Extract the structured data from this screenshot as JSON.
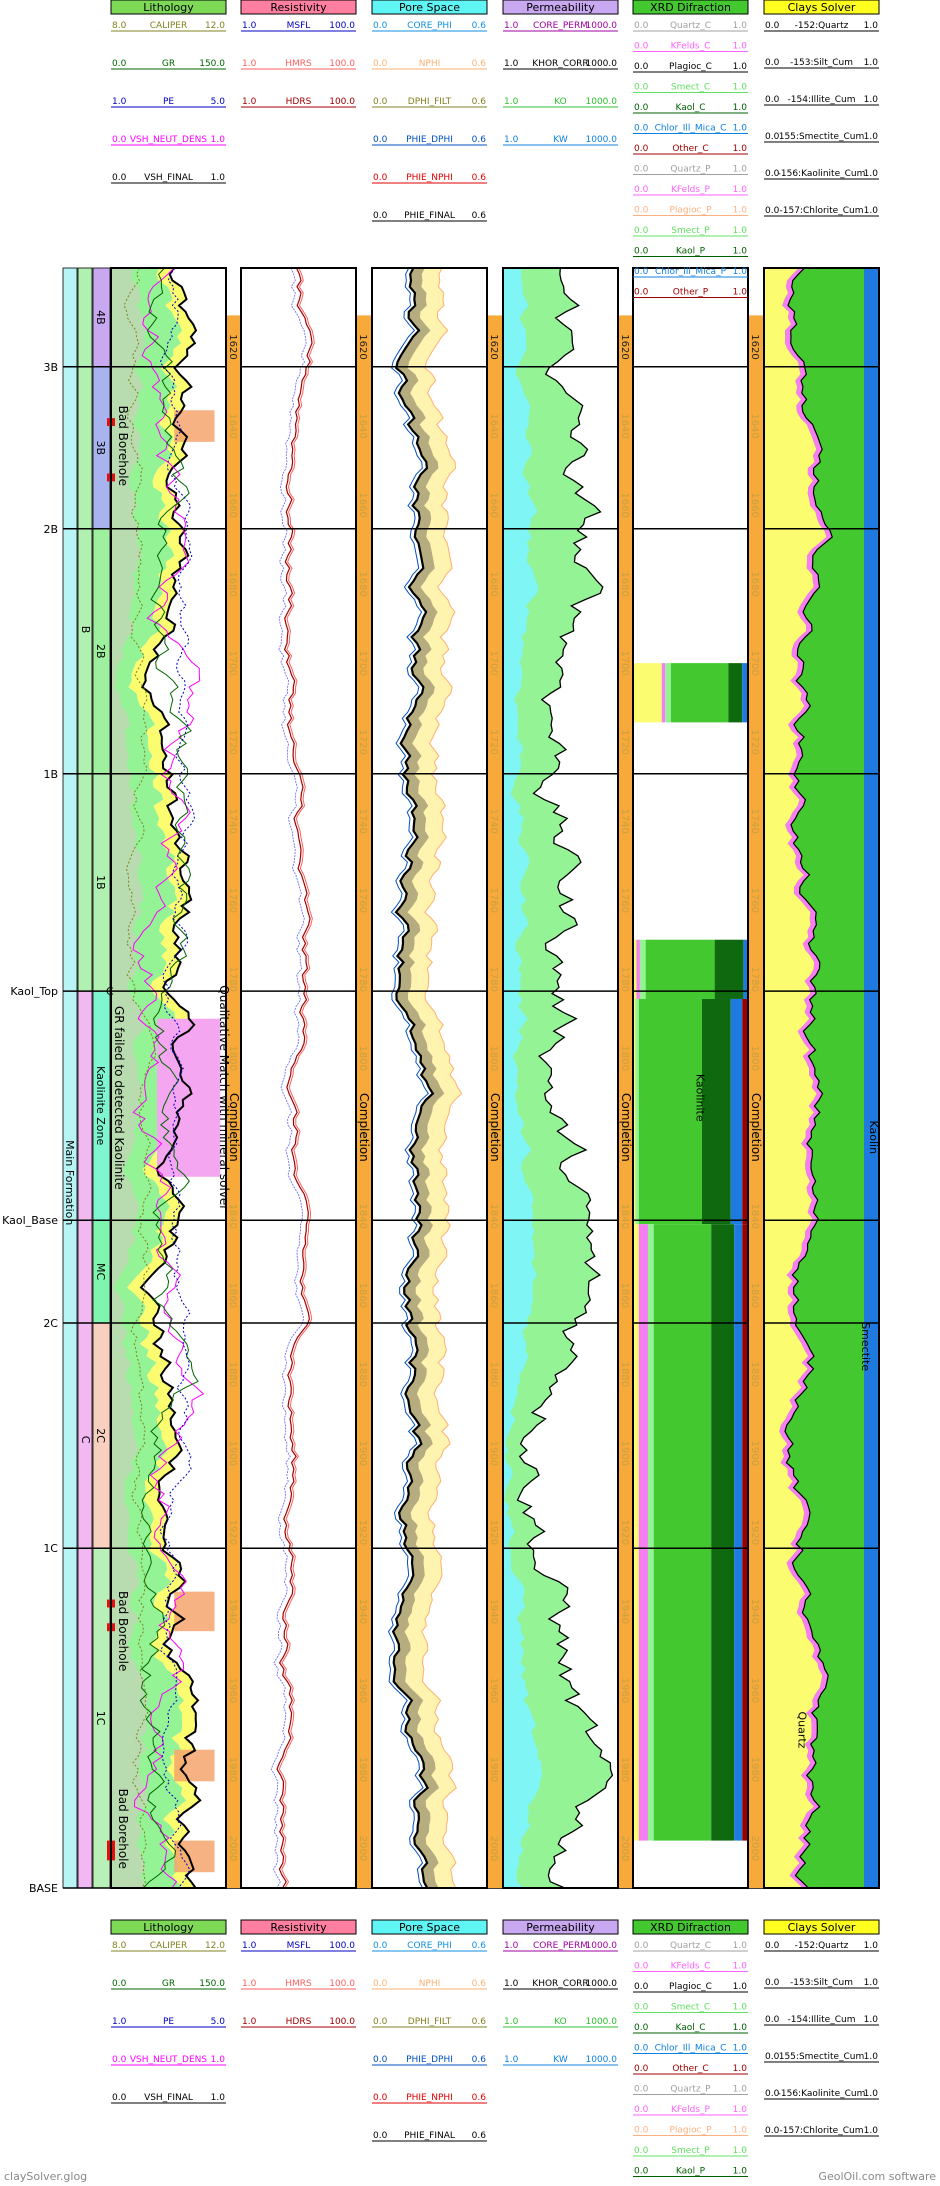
{
  "footer": {
    "left": "claySolver.glog",
    "right": "GeolOil.com software"
  },
  "colors": {
    "lithology": "#7ed957",
    "resistivity": "#ff7fa0",
    "pore_space": "#5ff5f5",
    "permeability": "#c8a8f0",
    "xrd": "#44c830",
    "clays": "#ffff20",
    "completion": "#f7a93a",
    "quartz": "#fcfc70",
    "green": "#44c830",
    "dark_green": "#0f6a0f",
    "pink": "#f77df2",
    "blue": "#1f7ae0",
    "cyan": "#7ff5f5",
    "light_green": "#94f394",
    "maroon": "#9b0000",
    "purple": "#8b0a8b",
    "red": "#e00000",
    "orange": "#f4a46c",
    "tan": "#b5ad80",
    "pale": "#fff3b0"
  },
  "chart_data": {
    "type": "well_log",
    "tracks": [
      {
        "name": "Lithology",
        "curves": [
          {
            "min": "8.0",
            "name": "CALIPER",
            "max": "12.0",
            "color": "#808020"
          },
          {
            "min": "0.0",
            "name": "GR",
            "max": "150.0",
            "color": "#006400"
          },
          {
            "min": "1.0",
            "name": "PE",
            "max": "5.0",
            "color": "#0000c0"
          },
          {
            "min": "0.0",
            "name": "VSH_NEUT_DENS",
            "max": "1.0",
            "color": "#ff00ff"
          },
          {
            "min": "0.0",
            "name": "VSH_FINAL",
            "max": "1.0",
            "color": "#000000"
          }
        ]
      },
      {
        "name": "Resistivity",
        "curves": [
          {
            "min": "1.0",
            "name": "MSFL",
            "max": "100.0",
            "color": "#0000c0"
          },
          {
            "min": "1.0",
            "name": "HMRS",
            "max": "100.0",
            "color": "#ff6060"
          },
          {
            "min": "1.0",
            "name": "HDRS",
            "max": "100.0",
            "color": "#a00000"
          }
        ]
      },
      {
        "name": "Pore Space",
        "curves": [
          {
            "min": "0.0",
            "name": "CORE_PHI",
            "max": "0.6",
            "color": "#1090e0"
          },
          {
            "min": "0.0",
            "name": "NPHI",
            "max": "0.6",
            "color": "#ffb070"
          },
          {
            "min": "0.0",
            "name": "DPHI_FILT",
            "max": "0.6",
            "color": "#808020"
          },
          {
            "min": "0.0",
            "name": "PHIE_DPHI",
            "max": "0.6",
            "color": "#0050c0"
          },
          {
            "min": "0.0",
            "name": "PHIE_NPHI",
            "max": "0.6",
            "color": "#e00000"
          },
          {
            "min": "0.0",
            "name": "PHIE_FINAL",
            "max": "0.6",
            "color": "#000000"
          }
        ]
      },
      {
        "name": "Permeability",
        "curves": [
          {
            "min": "1.0",
            "name": "CORE_PERM",
            "max": "1000.0",
            "color": "#a000a0"
          },
          {
            "min": "1.0",
            "name": "KHOR_CORR",
            "max": "1000.0",
            "color": "#000000"
          },
          {
            "min": "1.0",
            "name": "KO",
            "max": "1000.0",
            "color": "#30c030"
          },
          {
            "min": "1.0",
            "name": "KW",
            "max": "1000.0",
            "color": "#1080e0"
          }
        ]
      },
      {
        "name": "XRD Difraction",
        "curves": [
          {
            "min": "0.0",
            "name": "Quartz_C",
            "max": "1.0",
            "color": "#a0a0a0"
          },
          {
            "min": "0.0",
            "name": "KFelds_C",
            "max": "1.0",
            "color": "#ff60ff"
          },
          {
            "min": "0.0",
            "name": "Plagioc_C",
            "max": "1.0",
            "color": "#000000"
          },
          {
            "min": "0.0",
            "name": "Smect_C",
            "max": "1.0",
            "color": "#60e060"
          },
          {
            "min": "0.0",
            "name": "Kaol_C",
            "max": "1.0",
            "color": "#006000"
          },
          {
            "min": "0.0",
            "name": "Chlor_Ill_Mica_C",
            "max": "1.0",
            "color": "#1080e0"
          },
          {
            "min": "0.0",
            "name": "Other_C",
            "max": "1.0",
            "color": "#a00000"
          },
          {
            "min": "0.0",
            "name": "Quartz_P",
            "max": "1.0",
            "color": "#a0a0a0"
          },
          {
            "min": "0.0",
            "name": "KFelds_P",
            "max": "1.0",
            "color": "#ff60ff"
          },
          {
            "min": "0.0",
            "name": "Plagioc_P",
            "max": "1.0",
            "color": "#ffb080"
          },
          {
            "min": "0.0",
            "name": "Smect_P",
            "max": "1.0",
            "color": "#60e060"
          },
          {
            "min": "0.0",
            "name": "Kaol_P",
            "max": "1.0",
            "color": "#006000"
          },
          {
            "min": "0.0",
            "name": "Chlor_Ill_Mica_P",
            "max": "1.0",
            "color": "#1080e0"
          },
          {
            "min": "0.0",
            "name": "Other_P",
            "max": "1.0",
            "color": "#a00000"
          }
        ]
      },
      {
        "name": "Clays Solver",
        "curves": [
          {
            "min": "0.0",
            "name": "-152:Quartz",
            "max": "1.0",
            "color": "#000000"
          },
          {
            "min": "0.0",
            "name": "-153:Silt_Cum",
            "max": "1.0",
            "color": "#000000"
          },
          {
            "min": "0.0",
            "name": "-154:Illite_Cum",
            "max": "1.0",
            "color": "#000000"
          },
          {
            "min": "0.0",
            "name": "155:Smectite_Cum",
            "max": "1.0",
            "color": "#000000"
          },
          {
            "min": "0.0",
            "name": "-156:Kaolinite_Cum",
            "max": "1.0",
            "color": "#000000"
          },
          {
            "min": "0.0",
            "name": "-157:Chlorite_Cum",
            "max": "1.0",
            "color": "#000000"
          }
        ]
      }
    ],
    "depth_range": [
      1600,
      2010
    ],
    "depth_ticks": [
      1620,
      1640,
      1660,
      1680,
      1700,
      1720,
      1740,
      1760,
      1780,
      1800,
      1820,
      1840,
      1860,
      1880,
      1900,
      1920,
      1940,
      1960,
      1980,
      2000
    ],
    "tops": [
      {
        "name": "3B",
        "depth": 1625
      },
      {
        "name": "2B",
        "depth": 1666
      },
      {
        "name": "1B",
        "depth": 1728
      },
      {
        "name": "Kaol_Top",
        "depth": 1783
      },
      {
        "name": "Kaol_Base",
        "depth": 1841
      },
      {
        "name": "2C",
        "depth": 1867
      },
      {
        "name": "1C",
        "depth": 1924
      },
      {
        "name": "BASE",
        "depth": 2010
      }
    ],
    "zones": [
      {
        "name": "4B",
        "top": 1600,
        "base": 1625,
        "color": "#c8a8f0"
      },
      {
        "name": "3B",
        "top": 1625,
        "base": 1666,
        "color": "#a8b4f0"
      },
      {
        "name": "2B",
        "top": 1666,
        "base": 1728,
        "color": "#9ef09e"
      },
      {
        "name": "1B",
        "top": 1728,
        "base": 1783,
        "color": "#b0f0b0"
      },
      {
        "name": "Kaolinite Zone",
        "top": 1783,
        "base": 1841,
        "color": "#7ff5d0"
      },
      {
        "name": "MC",
        "top": 1841,
        "base": 1867,
        "color": "#7ff5b0"
      },
      {
        "name": "2C",
        "top": 1867,
        "base": 1924,
        "color": "#f8d0c0"
      },
      {
        "name": "1C",
        "top": 1924,
        "base": 2010,
        "color": "#b8f0b8"
      }
    ],
    "group_zones": [
      {
        "name": "B",
        "top": 1600,
        "base": 1783,
        "color": "#b0f0b0"
      },
      {
        "name": "C",
        "top": 1783,
        "base": 2010,
        "color": "#f2b8f2"
      }
    ],
    "formation": {
      "name": "Main Formation",
      "top": 1600,
      "base": 2010,
      "color": "#b8f4f4"
    },
    "annotations": {
      "bad_borehole_1": "Bad Borehole",
      "bad_borehole_2": "Bad Borehole",
      "bad_borehole_3": "Bad Borehole",
      "gr_failed": "GR failed to detected Kaolinite",
      "qualitative": "Qualitative Match with mineral solver",
      "completion": "Completion",
      "kaolinite": "Kaolinite",
      "kaolin": "Kaolin",
      "smectite": "Smectite",
      "quartz": "Quartz",
      "truncated_top_label": "C"
    }
  }
}
